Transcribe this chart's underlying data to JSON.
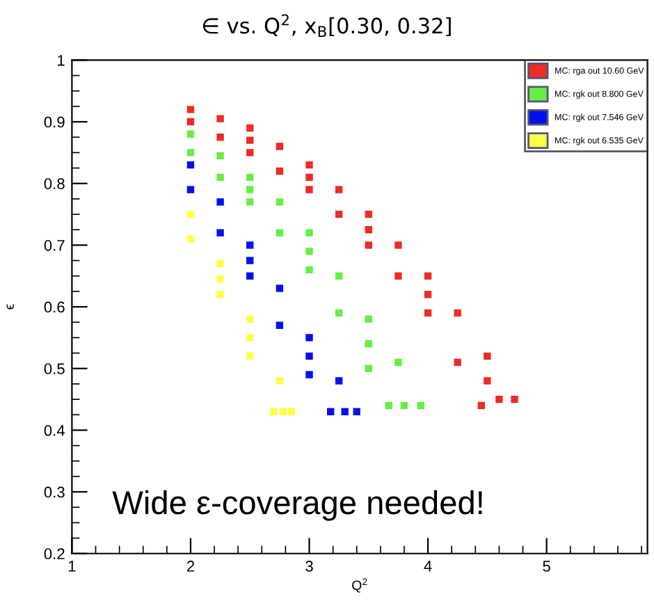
{
  "chart_data": {
    "type": "scatter",
    "title": "∈ vs. Q$^{2}$, x$_{B}$[0.30, 0.32]",
    "xlabel": "Q$^{2}$",
    "ylabel": "ϵ",
    "annotations": [
      "Wide ε-coverage needed!"
    ],
    "series": [
      {
        "name": "MC: rga out 10.60 GeV",
        "color": "#ee2b24",
        "x": [
          2,
          2.25,
          2.5,
          2.75,
          3,
          3.25,
          3.5,
          3.75,
          4,
          4.25,
          4.5,
          4.73,
          2,
          2.25,
          2.5,
          2.75,
          3,
          3.25,
          3.5,
          3.75,
          4,
          4.25,
          4.45,
          2.5,
          3,
          3.5,
          4,
          4.5,
          4.6
        ],
        "values": [
          0.92,
          0.905,
          0.89,
          0.86,
          0.83,
          0.79,
          0.75,
          0.7,
          0.65,
          0.59,
          0.52,
          0.45,
          0.9,
          0.875,
          0.85,
          0.82,
          0.79,
          0.75,
          0.7,
          0.65,
          0.59,
          0.51,
          0.44,
          0.87,
          0.81,
          0.725,
          0.62,
          0.48,
          0.45
        ]
      },
      {
        "name": "MC: rgk out 8.800 GeV",
        "color": "#66ee44",
        "x": [
          2,
          2.25,
          2.5,
          2.75,
          3,
          3.25,
          3.5,
          3.75,
          3.94,
          2,
          2.25,
          2.5,
          2.75,
          3,
          3.25,
          3.5,
          3.67,
          2.5,
          3,
          3.5,
          3.8
        ],
        "values": [
          0.88,
          0.845,
          0.81,
          0.77,
          0.72,
          0.65,
          0.58,
          0.51,
          0.44,
          0.85,
          0.81,
          0.77,
          0.72,
          0.66,
          0.59,
          0.5,
          0.44,
          0.79,
          0.69,
          0.54,
          0.44
        ]
      },
      {
        "name": "MC: rgk out 7.546 GeV",
        "color": "#0011ee",
        "x": [
          2,
          2.25,
          2.5,
          2.75,
          3,
          3.25,
          3.4,
          2,
          2.25,
          2.5,
          2.75,
          3,
          3.18,
          2.5,
          3,
          3.3
        ],
        "values": [
          0.83,
          0.77,
          0.7,
          0.63,
          0.55,
          0.48,
          0.43,
          0.79,
          0.72,
          0.65,
          0.57,
          0.49,
          0.43,
          0.675,
          0.52,
          0.43
        ]
      },
      {
        "name": "MC: rgk out 6.535 GeV",
        "color": "#ffff44",
        "x": [
          2,
          2.25,
          2.5,
          2.75,
          2.85,
          2,
          2.25,
          2.5,
          2.7,
          2.25,
          2.5,
          2.78
        ],
        "values": [
          0.75,
          0.67,
          0.58,
          0.48,
          0.43,
          0.71,
          0.62,
          0.52,
          0.43,
          0.645,
          0.55,
          0.43
        ]
      }
    ],
    "xlim": [
      1,
      5.85
    ],
    "xticks": [
      1,
      2,
      3,
      4,
      5
    ],
    "ylim": [
      0.2,
      1
    ],
    "yticks": [
      0.2,
      0.3,
      0.4,
      0.5,
      0.6,
      0.7,
      0.8,
      0.9,
      1
    ],
    "grid": false,
    "legend": "top right",
    "marker": "square"
  }
}
